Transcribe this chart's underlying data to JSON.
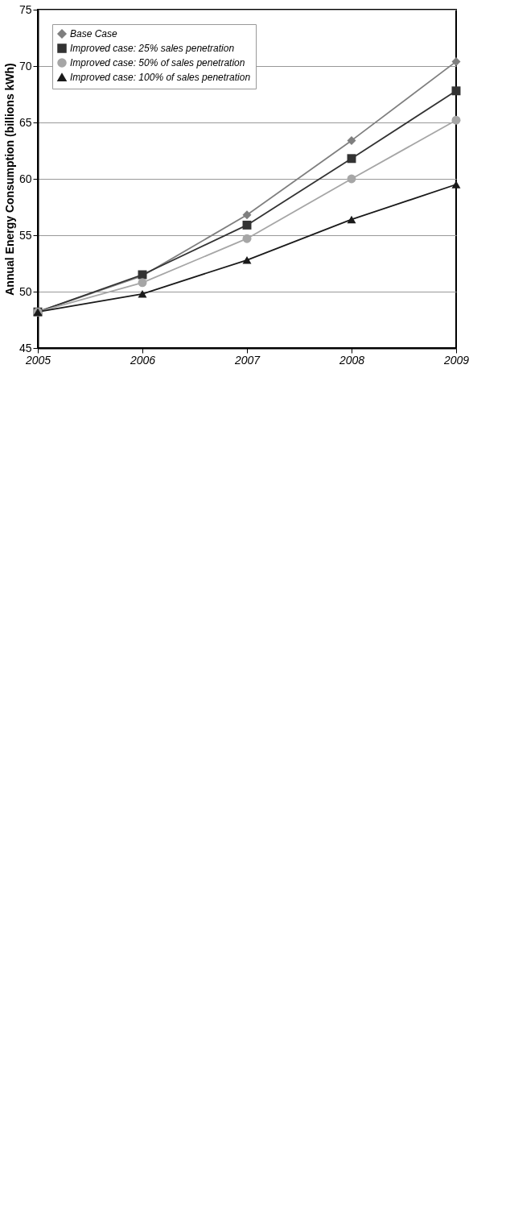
{
  "chart_data": {
    "type": "line",
    "ylabel": "Annual Energy Consumption (billions kWh)",
    "x": [
      2005,
      2006,
      2007,
      2008,
      2009
    ],
    "xlim": [
      2005,
      2009
    ],
    "xticks": [
      2005,
      2006,
      2007,
      2008,
      2009
    ],
    "ylim": [
      45,
      75
    ],
    "yticks": [
      45,
      50,
      55,
      60,
      65,
      70,
      75
    ],
    "grid": "y",
    "legend": "top left",
    "series": [
      {
        "name": "Base Case",
        "color": "#7f7f7f",
        "marker": "diamond",
        "values": [
          48.2,
          51.4,
          56.8,
          63.4,
          70.4
        ]
      },
      {
        "name": "Improved case: 25% sales penetration",
        "color": "#333333",
        "marker": "square",
        "values": [
          48.2,
          51.5,
          55.9,
          61.8,
          67.8
        ]
      },
      {
        "name": "Improved case: 50% of sales penetration",
        "color": "#a6a6a6",
        "marker": "circle",
        "values": [
          48.2,
          50.8,
          54.7,
          60.0,
          65.2
        ]
      },
      {
        "name": "Improved case: 100% of sales penetration",
        "color": "#1a1a1a",
        "marker": "triangle",
        "values": [
          48.2,
          49.8,
          52.8,
          56.4,
          59.5
        ]
      }
    ]
  }
}
